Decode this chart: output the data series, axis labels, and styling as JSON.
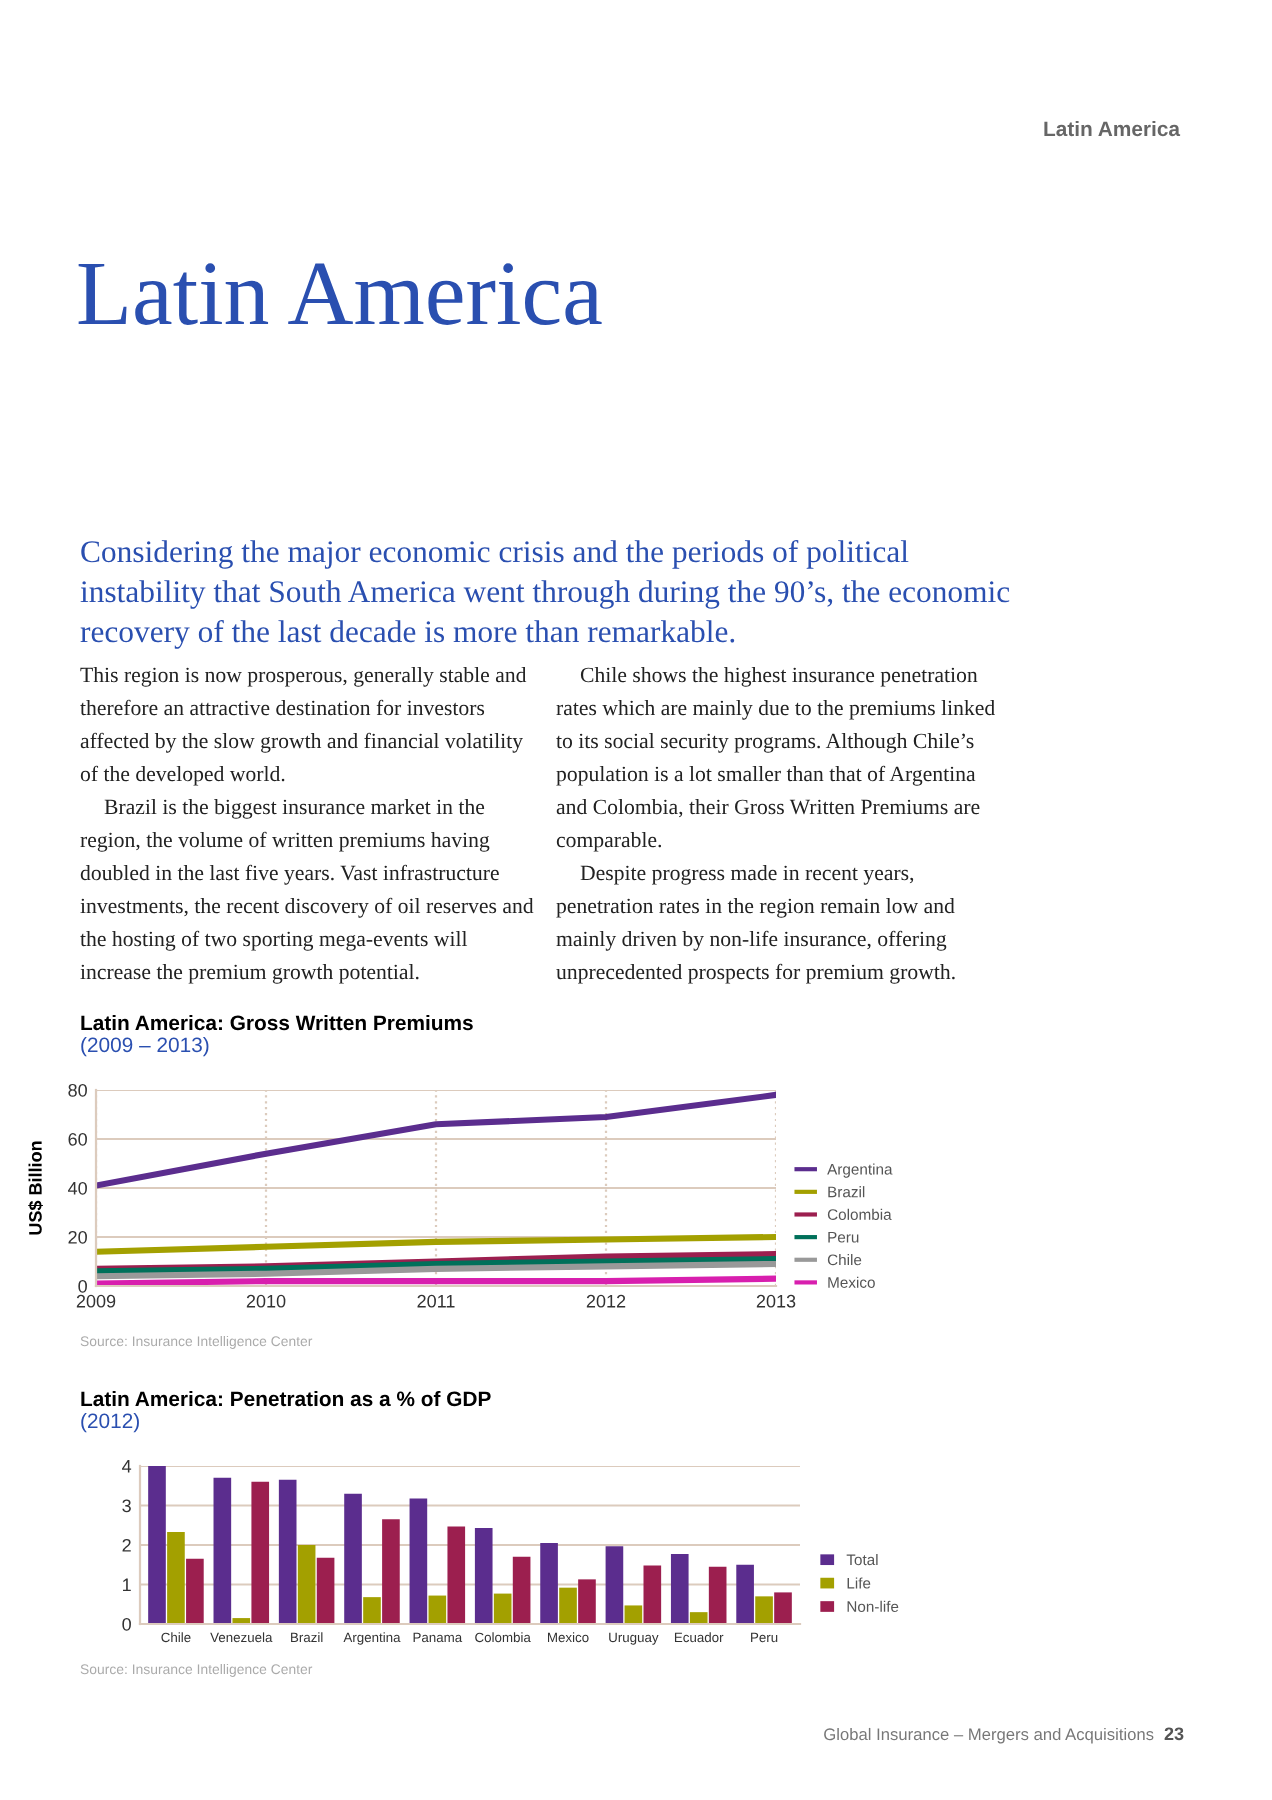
{
  "chart_data": [
    {
      "type": "line",
      "title": "Latin America: Gross Written Premiums",
      "subtitle": "(2009 – 2013)",
      "ylabel": "US$ Billion",
      "x": [
        2009,
        2010,
        2011,
        2012,
        2013
      ],
      "xlim": [
        2009,
        2013
      ],
      "xticks": [
        2009,
        2010,
        2011,
        2012,
        2013
      ],
      "ylim": [
        0,
        80
      ],
      "yticks": [
        0,
        20,
        40,
        60,
        80
      ],
      "grid": true,
      "legend": "right",
      "line_style": "solid",
      "series": [
        {
          "name": "Argentina",
          "color": "#5b2d8e",
          "values": [
            41,
            54,
            66,
            69,
            78
          ]
        },
        {
          "name": "Brazil",
          "color": "#a3a000",
          "values": [
            14,
            16,
            18,
            19,
            20
          ]
        },
        {
          "name": "Colombia",
          "color": "#9c1f4f",
          "values": [
            7,
            8,
            10,
            12,
            13
          ]
        },
        {
          "name": "Peru",
          "color": "#00705a",
          "values": [
            6,
            7,
            9,
            10,
            11
          ]
        },
        {
          "name": "Chile",
          "color": "#999999",
          "values": [
            4,
            5,
            7,
            8,
            9
          ]
        },
        {
          "name": "Mexico",
          "color": "#d81fae",
          "values": [
            1,
            2,
            2,
            2,
            3
          ]
        }
      ],
      "annotations": [
        "Latin America",
        "Latin America",
        "Considering the major economic crisis and the periods of political instability that South America went through during the 90’s, the economic recovery of the last decade is more than remarkable.",
        "This region is now prosperous, generally stable and therefore an attractive destination for investors affected by the slow growth and financial volatility of the developed world.",
        "Brazil is the biggest insurance market in the region, the volume of written premiums having doubled in the last five years. Vast infrastructure investments, the recent discovery of oil reserves and the hosting of two sporting mega-events will increase the premium growth potential.",
        "Chile shows the highest insurance penetration rates which are mainly due to the premiums linked to its social security programs. Although Chile’s population is a lot smaller than that of Argentina and Colombia, their Gross Written Premiums are comparable.",
        "Despite progress made in recent years, penetration rates in the region remain low and mainly driven by non-life insurance, offering unprecedented prospects for premium growth.",
        "Source: Insurance Intelligence Center"
      ]
    },
    {
      "type": "bar",
      "title": "Latin America: Penetration as a % of GDP",
      "subtitle": "(2012)",
      "categories": [
        "Chile",
        "Venezuela",
        "Brazil",
        "Argentina",
        "Panama",
        "Colombia",
        "Mexico",
        "Uruguay",
        "Ecuador",
        "Peru"
      ],
      "ylim": [
        0,
        4
      ],
      "yticks": [
        0,
        1,
        2,
        3,
        4
      ],
      "grid": "y",
      "legend": "right",
      "series": [
        {
          "name": "Total",
          "color": "#5b2d8e",
          "values": [
            4.0,
            3.7,
            3.65,
            3.3,
            3.18,
            2.43,
            2.05,
            1.97,
            1.77,
            1.5
          ]
        },
        {
          "name": "Life",
          "color": "#a3a000",
          "values": [
            2.33,
            0.15,
            2.0,
            0.68,
            0.72,
            0.77,
            0.92,
            0.47,
            0.3,
            0.7
          ]
        },
        {
          "name": "Non-life",
          "color": "#9c1f4f",
          "values": [
            1.65,
            3.6,
            1.68,
            2.65,
            2.47,
            1.7,
            1.13,
            1.48,
            1.45,
            0.8
          ]
        }
      ],
      "annotations": [
        "Source: Insurance Intelligence Center",
        "Global Insurance – Mergers and Acquisitions",
        "23"
      ]
    }
  ]
}
